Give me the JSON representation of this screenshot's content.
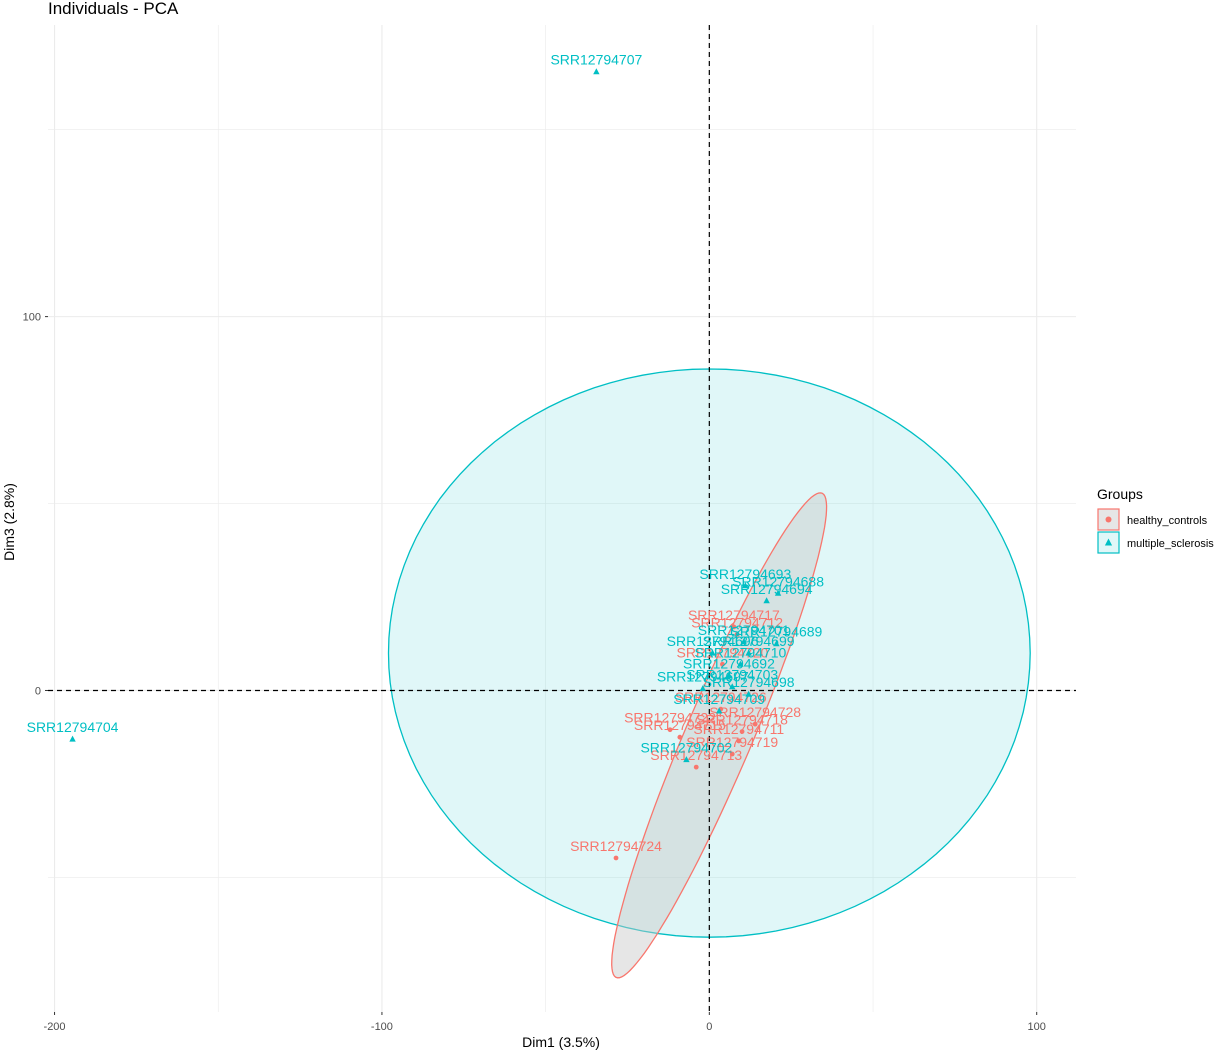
{
  "chart_data": {
    "type": "scatter",
    "title": "Individuals - PCA",
    "xlabel": "Dim1 (3.5%)",
    "ylabel": "Dim3 (2.8%)",
    "xlim": [
      -202,
      112
    ],
    "ylim": [
      -86,
      178
    ],
    "x_ticks": [
      -200,
      -100,
      0,
      100
    ],
    "y_ticks": [
      0,
      100
    ],
    "grid": true,
    "reference_lines": {
      "x": 0,
      "y": 0,
      "style": "dashed"
    },
    "legend": {
      "title": "Groups",
      "placement": "right"
    },
    "series": [
      {
        "name": "healthy_controls",
        "color": "#F8766D",
        "marker": "circle",
        "ellipse": {
          "center": [
            3,
            -12
          ],
          "semi_axes": [
            72,
            10
          ],
          "rotation_deg": 64
        },
        "points": [
          {
            "label": "SRR12794724",
            "x": -28.5,
            "y": -44.8
          },
          {
            "label": "SRR12794717",
            "x": 7.5,
            "y": 17.0
          },
          {
            "label": "SRR12794712",
            "x": 8.5,
            "y": 15.0
          },
          {
            "label": "SRR12794720",
            "x": 4.0,
            "y": 7.0
          },
          {
            "label": "SRR12794728",
            "x": 14.0,
            "y": -9.0
          },
          {
            "label": "SRR12794718",
            "x": 10.0,
            "y": -11.0
          },
          {
            "label": "SRR12794711",
            "x": 9.0,
            "y": -13.5
          },
          {
            "label": "SRR12794719",
            "x": 7.0,
            "y": -17.0
          },
          {
            "label": "SRR12794713",
            "x": -4.0,
            "y": -20.5
          },
          {
            "label": "SRR12794726",
            "x": 3.5,
            "y": -5.0
          },
          {
            "label": "SRR12794715",
            "x": -9.0,
            "y": -12.5
          },
          {
            "label": "SRR12794722",
            "x": -12.0,
            "y": -10.5
          }
        ]
      },
      {
        "name": "multiple_sclerosis",
        "color": "#00BFC4",
        "marker": "triangle",
        "ellipse": {
          "center": [
            0,
            10
          ],
          "semi_axes": [
            98,
            76
          ],
          "rotation_deg": 0
        },
        "points": [
          {
            "label": "SRR12794707",
            "x": -34.5,
            "y": 165.5
          },
          {
            "label": "SRR12794704",
            "x": -194.5,
            "y": -13.0
          },
          {
            "label": "SRR12794693",
            "x": 11.0,
            "y": 28.0
          },
          {
            "label": "SRR12794688",
            "x": 21.0,
            "y": 26.0
          },
          {
            "label": "SRR12794694",
            "x": 17.5,
            "y": 24.0
          },
          {
            "label": "SRR12794689",
            "x": 20.5,
            "y": 12.5
          },
          {
            "label": "SRR12794701",
            "x": 10.5,
            "y": 13.0
          },
          {
            "label": "SRR12794699",
            "x": 12.0,
            "y": 10.0
          },
          {
            "label": "SRR12794696",
            "x": 1.0,
            "y": 10.0
          },
          {
            "label": "SRR12794710",
            "x": 9.5,
            "y": 7.0
          },
          {
            "label": "SRR12794692",
            "x": 6.0,
            "y": 4.0
          },
          {
            "label": "SRR12794703",
            "x": 7.0,
            "y": 1.0
          },
          {
            "label": "SRR12794697",
            "x": -2.0,
            "y": 0.5
          },
          {
            "label": "SRR12794698",
            "x": 12.0,
            "y": -1.0
          },
          {
            "label": "SRR12794709",
            "x": 3.0,
            "y": -5.5
          },
          {
            "label": "SRR12794702",
            "x": -7.0,
            "y": -18.5
          }
        ]
      }
    ]
  }
}
